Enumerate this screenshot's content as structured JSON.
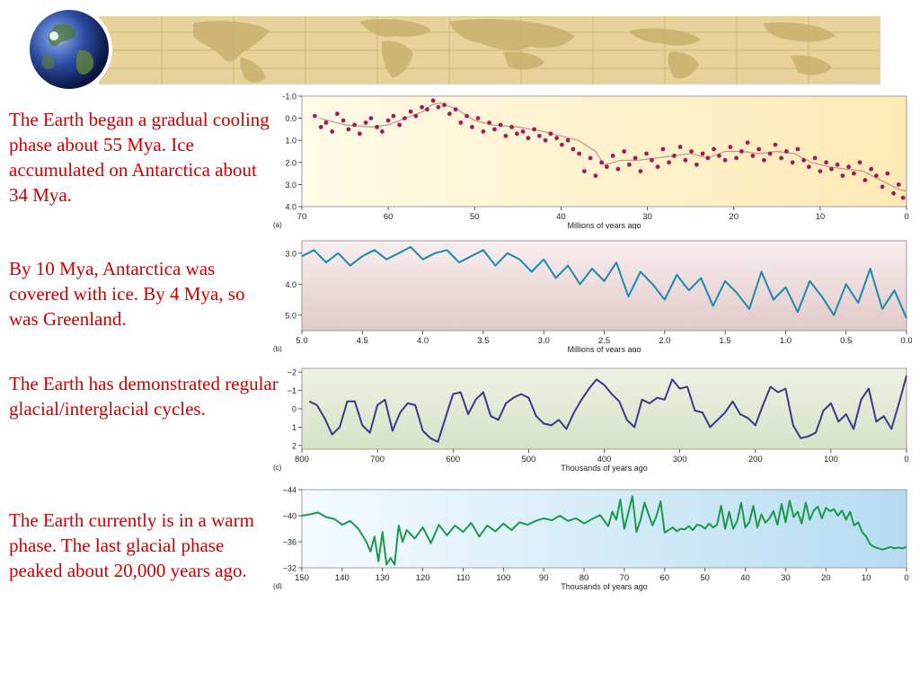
{
  "slide": {
    "paragraphs": [
      "The Earth began a gradual cooling phase about 55 Mya.  Ice accumulated on Antarctica about 34 Mya.",
      "By 10 Mya, Antarctica was covered with ice.  By 4 Mya, so was Greenland.",
      "The Earth has demonstrated regular glacial/interglacial cycles.",
      "The Earth currently is in a warm phase.  The last glacial phase peaked about 20,000 years ago."
    ],
    "colors": {
      "text": "#cc0000",
      "banner": "#e6d29a",
      "globe": "#2a4aa0"
    },
    "icons": {
      "globe": "earth-globe-icon",
      "map": "world-map-icon"
    }
  },
  "chart_data": [
    {
      "type": "scatter",
      "panel_label": "(a)",
      "xlabel": "Millions of years ago",
      "ylabel": "",
      "xlim": [
        70,
        0
      ],
      "ylim": [
        -1.0,
        4.0
      ],
      "x_ticks": [
        70,
        60,
        50,
        40,
        30,
        20,
        10,
        0
      ],
      "y_ticks": [
        "-1.0",
        "0.0",
        "1.0",
        "2.0",
        "3.0",
        "4.0"
      ],
      "y_tick_values": [
        -1,
        0,
        1,
        2,
        3,
        4
      ],
      "trend": {
        "x": [
          68,
          65,
          62,
          60,
          58,
          56,
          55,
          54,
          52,
          50,
          48,
          45,
          42,
          40,
          38,
          36,
          35,
          34,
          33,
          31,
          29,
          27,
          25,
          23,
          21,
          19,
          17,
          15,
          13,
          11,
          9,
          7,
          5,
          4,
          3,
          2,
          1,
          0
        ],
        "y": [
          0.0,
          0.3,
          0.4,
          0.3,
          0.0,
          -0.3,
          -0.6,
          -0.7,
          -0.4,
          0.1,
          0.3,
          0.4,
          0.6,
          0.8,
          1.0,
          1.5,
          2.1,
          2.0,
          1.9,
          1.9,
          1.8,
          1.7,
          1.6,
          1.8,
          1.5,
          1.5,
          1.6,
          1.5,
          1.6,
          2.0,
          2.2,
          2.3,
          2.4,
          2.6,
          2.8,
          3.0,
          3.2,
          3.3
        ]
      },
      "series": [
        {
          "name": "",
          "color": "#a3195b",
          "x": [
            68.5,
            67.8,
            67.2,
            66.5,
            65.9,
            65.2,
            64.6,
            63.9,
            63.3,
            62.6,
            62.0,
            61.3,
            60.7,
            60.0,
            59.4,
            58.7,
            58.1,
            57.4,
            56.8,
            56.1,
            55.5,
            54.8,
            54.2,
            53.5,
            52.9,
            52.2,
            51.6,
            50.9,
            50.3,
            49.6,
            49.0,
            48.3,
            47.7,
            47.0,
            46.4,
            45.7,
            45.1,
            44.4,
            43.8,
            43.1,
            42.5,
            41.8,
            41.2,
            40.5,
            39.9,
            39.2,
            38.6,
            37.9,
            37.3,
            36.6,
            36.0,
            35.3,
            34.7,
            34.0,
            33.4,
            32.7,
            32.1,
            31.4,
            30.8,
            30.1,
            29.5,
            28.8,
            28.2,
            27.5,
            26.9,
            26.2,
            25.6,
            24.9,
            24.3,
            23.6,
            23.0,
            22.3,
            21.7,
            21.0,
            20.4,
            19.7,
            19.1,
            18.4,
            17.8,
            17.1,
            16.5,
            15.8,
            15.2,
            14.5,
            13.9,
            13.2,
            12.6,
            11.9,
            11.3,
            10.6,
            10.0,
            9.3,
            8.7,
            8.0,
            7.4,
            6.7,
            6.1,
            5.4,
            4.8,
            4.1,
            3.5,
            2.8,
            2.2,
            1.5,
            0.9,
            0.4
          ],
          "y": [
            -0.1,
            0.4,
            0.2,
            0.6,
            -0.2,
            0.1,
            0.5,
            0.3,
            0.7,
            0.2,
            0.0,
            0.4,
            0.6,
            0.1,
            -0.1,
            0.3,
            0.0,
            -0.3,
            -0.1,
            -0.5,
            -0.4,
            -0.8,
            -0.5,
            -0.6,
            -0.2,
            -0.4,
            0.2,
            -0.1,
            0.4,
            0.0,
            0.6,
            0.2,
            0.5,
            0.3,
            0.8,
            0.4,
            0.7,
            0.6,
            0.9,
            0.5,
            0.8,
            1.0,
            0.7,
            0.9,
            1.2,
            1.0,
            1.4,
            1.6,
            2.4,
            1.8,
            2.6,
            2.0,
            2.2,
            1.7,
            2.3,
            1.5,
            2.1,
            1.8,
            2.4,
            1.6,
            1.9,
            2.2,
            1.4,
            2.0,
            1.7,
            1.3,
            1.9,
            1.5,
            2.1,
            1.6,
            1.8,
            1.4,
            1.7,
            1.9,
            1.3,
            1.8,
            1.5,
            1.1,
            1.7,
            1.4,
            1.9,
            1.6,
            1.2,
            1.8,
            1.5,
            2.0,
            1.4,
            1.9,
            2.2,
            1.8,
            2.4,
            2.0,
            2.3,
            2.1,
            2.6,
            2.2,
            2.5,
            2.0,
            2.8,
            2.3,
            2.6,
            3.1,
            2.5,
            3.4,
            3.0,
            3.6
          ]
        }
      ]
    },
    {
      "type": "line",
      "panel_label": "(b)",
      "xlabel": "Millions of years ago",
      "ylabel": "",
      "xlim": [
        5.0,
        0.0
      ],
      "ylim": [
        2.6,
        5.5
      ],
      "x_ticks": [
        "5.0",
        "4.5",
        "4.0",
        "3.5",
        "3.0",
        "2.5",
        "2.0",
        "1.5",
        "1.0",
        "0.5",
        "0.0"
      ],
      "x_tick_values": [
        5.0,
        4.5,
        4.0,
        3.5,
        3.0,
        2.5,
        2.0,
        1.5,
        1.0,
        0.5,
        0.0
      ],
      "y_ticks": [
        "3.0",
        "4.0",
        "5.0"
      ],
      "y_tick_values": [
        3.0,
        4.0,
        5.0
      ],
      "series": [
        {
          "name": "",
          "color": "#1a8ab0",
          "x": [
            5.0,
            4.9,
            4.8,
            4.7,
            4.6,
            4.5,
            4.4,
            4.3,
            4.2,
            4.1,
            4.0,
            3.9,
            3.8,
            3.7,
            3.6,
            3.5,
            3.4,
            3.3,
            3.2,
            3.1,
            3.0,
            2.9,
            2.8,
            2.7,
            2.6,
            2.5,
            2.4,
            2.3,
            2.2,
            2.1,
            2.0,
            1.9,
            1.8,
            1.7,
            1.6,
            1.5,
            1.4,
            1.3,
            1.2,
            1.1,
            1.0,
            0.9,
            0.8,
            0.7,
            0.6,
            0.5,
            0.4,
            0.3,
            0.2,
            0.1,
            0.0
          ],
          "y": [
            3.1,
            2.9,
            3.3,
            3.0,
            3.4,
            3.1,
            2.9,
            3.2,
            3.0,
            2.8,
            3.2,
            3.0,
            2.9,
            3.3,
            3.1,
            2.9,
            3.4,
            3.0,
            3.2,
            3.6,
            3.2,
            3.8,
            3.4,
            4.0,
            3.5,
            3.9,
            3.3,
            4.4,
            3.6,
            4.0,
            4.5,
            3.7,
            4.2,
            3.8,
            4.7,
            3.9,
            4.3,
            4.8,
            3.6,
            4.5,
            4.1,
            4.9,
            3.9,
            4.4,
            5.0,
            4.0,
            4.6,
            3.5,
            4.8,
            4.2,
            5.1
          ]
        }
      ]
    },
    {
      "type": "line",
      "panel_label": "(c)",
      "xlabel": "Thousands of years ago",
      "ylabel": "",
      "xlim": [
        800,
        0
      ],
      "ylim": [
        -2.2,
        2.2
      ],
      "x_ticks": [
        "800",
        "700",
        "600",
        "500",
        "400",
        "300",
        "200",
        "100",
        "0"
      ],
      "x_tick_values": [
        800,
        700,
        600,
        500,
        400,
        300,
        200,
        100,
        0
      ],
      "y_ticks": [
        "−2",
        "−1",
        "0",
        "1",
        "2"
      ],
      "y_tick_values": [
        -2,
        -1,
        0,
        1,
        2
      ],
      "series": [
        {
          "name": "",
          "color": "#3a3a8c",
          "x": [
            790,
            780,
            770,
            760,
            750,
            740,
            730,
            720,
            710,
            700,
            690,
            680,
            670,
            660,
            650,
            640,
            630,
            620,
            610,
            600,
            590,
            580,
            570,
            560,
            550,
            540,
            530,
            520,
            510,
            500,
            490,
            480,
            470,
            460,
            450,
            440,
            430,
            420,
            410,
            400,
            390,
            380,
            370,
            360,
            350,
            340,
            330,
            320,
            310,
            300,
            290,
            280,
            270,
            260,
            250,
            240,
            230,
            220,
            210,
            200,
            190,
            180,
            170,
            160,
            150,
            140,
            130,
            120,
            110,
            100,
            90,
            80,
            70,
            60,
            50,
            40,
            30,
            20,
            10,
            0
          ],
          "y": [
            -0.4,
            -0.2,
            0.5,
            1.4,
            1.0,
            -0.4,
            -0.4,
            0.9,
            1.3,
            -0.2,
            -0.5,
            1.2,
            0.2,
            -0.3,
            -0.2,
            1.2,
            1.6,
            1.8,
            0.5,
            -0.8,
            -0.9,
            0.3,
            -0.5,
            -0.9,
            0.4,
            0.6,
            -0.3,
            -0.6,
            -0.8,
            -0.6,
            0.4,
            0.8,
            0.9,
            0.6,
            1.1,
            0.2,
            -0.5,
            -1.1,
            -1.6,
            -1.3,
            -0.8,
            -0.4,
            0.6,
            1.0,
            -0.5,
            -0.3,
            -0.6,
            -0.5,
            -1.6,
            -1.1,
            -1.2,
            0.1,
            0.2,
            1.0,
            0.6,
            0.2,
            -0.4,
            0.3,
            0.5,
            0.9,
            -0.2,
            -1.2,
            -0.9,
            -1.1,
            0.9,
            1.6,
            1.5,
            1.3,
            0.1,
            -0.3,
            0.7,
            0.3,
            1.1,
            -0.5,
            -1.1,
            0.7,
            0.4,
            1.1,
            -0.3,
            -1.8
          ]
        }
      ]
    },
    {
      "type": "line",
      "panel_label": "(d)",
      "xlabel": "Thousands of years ago",
      "ylabel": "",
      "xlim": [
        150,
        0
      ],
      "ylim": [
        -44,
        -32
      ],
      "x_ticks": [
        "150",
        "140",
        "130",
        "120",
        "110",
        "100",
        "90",
        "80",
        "70",
        "60",
        "50",
        "40",
        "30",
        "20",
        "10",
        "0"
      ],
      "x_tick_values": [
        150,
        140,
        130,
        120,
        110,
        100,
        90,
        80,
        70,
        60,
        50,
        40,
        30,
        20,
        10,
        0
      ],
      "y_ticks": [
        "−32",
        "−36",
        "−40",
        "−44"
      ],
      "y_tick_values": [
        -32,
        -36,
        -40,
        -44
      ],
      "series": [
        {
          "name": "",
          "color": "#1a9a48",
          "x": [
            150,
            148,
            146,
            144,
            142,
            140,
            138,
            136,
            134,
            133,
            132,
            131,
            130,
            129,
            128,
            127,
            126,
            125,
            124,
            122,
            120,
            118,
            116,
            114,
            112,
            110,
            108,
            106,
            104,
            102,
            100,
            98,
            96,
            94,
            92,
            90,
            88,
            86,
            84,
            82,
            80,
            78,
            76,
            74,
            73,
            72,
            71,
            70,
            69,
            68,
            67,
            66,
            65,
            64,
            63,
            62,
            61,
            60,
            59,
            58,
            57,
            56,
            55,
            54,
            53,
            52,
            51,
            50,
            49,
            48,
            47,
            46,
            45,
            44,
            43,
            42,
            41,
            40,
            39,
            38,
            37,
            36,
            35,
            34,
            33,
            32,
            31,
            30,
            29,
            28,
            27,
            26,
            25,
            24,
            23,
            22,
            21,
            20,
            19,
            18,
            17,
            16,
            15,
            14,
            13,
            12,
            11,
            10,
            9,
            8,
            7,
            6,
            5,
            4,
            3,
            2,
            1,
            0
          ],
          "y": [
            -40.0,
            -40.2,
            -40.5,
            -39.8,
            -39.5,
            -38.6,
            -39.2,
            -38.0,
            -36.0,
            -34.5,
            -36.8,
            -33.0,
            -37.5,
            -32.5,
            -33.5,
            -32.5,
            -38.5,
            -36.0,
            -37.8,
            -36.5,
            -38.2,
            -35.8,
            -38.6,
            -37.0,
            -38.5,
            -37.5,
            -38.9,
            -36.8,
            -38.5,
            -37.6,
            -38.8,
            -37.8,
            -39.0,
            -38.6,
            -39.2,
            -39.6,
            -39.3,
            -40.0,
            -39.2,
            -39.6,
            -38.8,
            -39.5,
            -40.1,
            -38.4,
            -40.6,
            -39.4,
            -42.5,
            -38.0,
            -40.5,
            -43.0,
            -37.5,
            -39.3,
            -42.0,
            -40.2,
            -38.5,
            -40.0,
            -42.2,
            -37.4,
            -37.8,
            -38.2,
            -37.6,
            -38.0,
            -37.9,
            -38.4,
            -37.8,
            -38.6,
            -38.5,
            -38.0,
            -38.8,
            -38.2,
            -38.6,
            -41.5,
            -38.0,
            -40.6,
            -38.0,
            -39.2,
            -42.0,
            -38.2,
            -39.0,
            -41.5,
            -38.2,
            -40.2,
            -38.9,
            -39.6,
            -40.7,
            -38.6,
            -41.8,
            -39.0,
            -42.3,
            -39.8,
            -40.6,
            -38.8,
            -42.0,
            -39.4,
            -40.8,
            -41.4,
            -39.6,
            -41.2,
            -40.7,
            -41.0,
            -40.0,
            -40.8,
            -39.4,
            -40.6,
            -38.5,
            -39.0,
            -37.5,
            -36.8,
            -35.6,
            -35.2,
            -35.0,
            -34.8,
            -35.0,
            -35.2,
            -35.0,
            -35.1,
            -35.0,
            -35.2
          ]
        }
      ]
    }
  ]
}
